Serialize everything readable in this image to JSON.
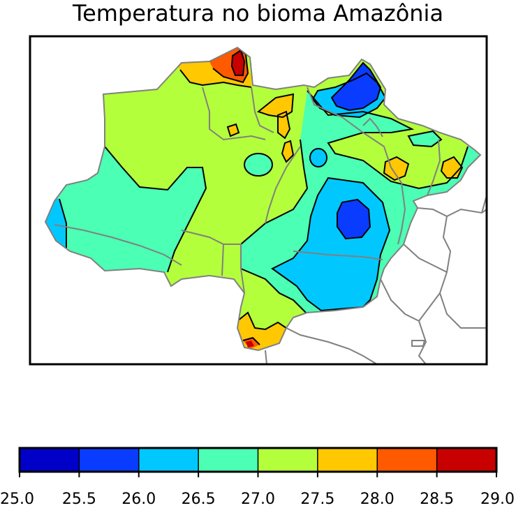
{
  "title": "Temperatura no bioma Amazônia",
  "colorbar": {
    "ticks": [
      "25.0",
      "25.5",
      "26.0",
      "26.5",
      "27.0",
      "27.5",
      "28.0",
      "28.5",
      "29.0"
    ],
    "bins": [
      {
        "min": 25.0,
        "max": 25.5,
        "color": "#0000c8"
      },
      {
        "min": 25.5,
        "max": 26.0,
        "color": "#0a3cff"
      },
      {
        "min": 26.0,
        "max": 26.5,
        "color": "#00c8ff"
      },
      {
        "min": 26.5,
        "max": 27.0,
        "color": "#4bffb4"
      },
      {
        "min": 27.0,
        "max": 27.5,
        "color": "#b4ff3c"
      },
      {
        "min": 27.5,
        "max": 28.0,
        "color": "#ffc800"
      },
      {
        "min": 28.0,
        "max": 28.5,
        "color": "#ff5a00"
      },
      {
        "min": 28.5,
        "max": 29.0,
        "color": "#c80000"
      }
    ]
  },
  "colors": {
    "boundary": "#808080",
    "contour": "#000000",
    "frame": "#000000"
  }
}
